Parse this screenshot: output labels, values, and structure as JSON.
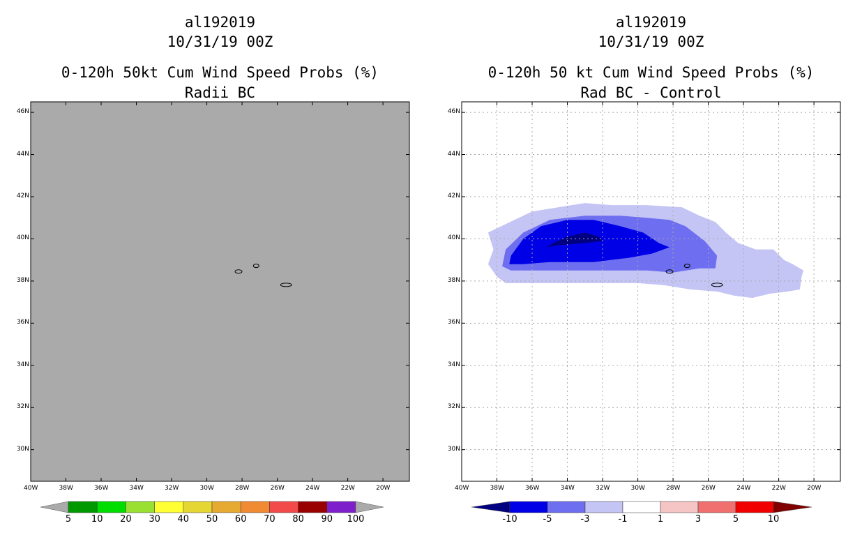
{
  "chart_data": [
    {
      "type": "heatmap",
      "storm_id": "al192019",
      "datetime": "10/31/19 00Z",
      "title": "0-120h 50kt Cum Wind Speed Probs (%)",
      "subtitle": "Radii BC",
      "x_ticks": [
        "40W",
        "38W",
        "36W",
        "34W",
        "32W",
        "30W",
        "28W",
        "26W",
        "24W",
        "22W",
        "20W"
      ],
      "y_ticks": [
        "46N",
        "44N",
        "42N",
        "40N",
        "38N",
        "36N",
        "34N",
        "32N",
        "30N"
      ],
      "xlim": [
        -40,
        -18.5
      ],
      "ylim": [
        28.5,
        46.5
      ],
      "grid": false,
      "background": "#aaaaaa",
      "colorbar": {
        "labels": [
          "5",
          "10",
          "20",
          "30",
          "40",
          "50",
          "60",
          "70",
          "80",
          "90",
          "100"
        ],
        "colors": [
          "#009900",
          "#00dd00",
          "#99e033",
          "#ffff33",
          "#e6d633",
          "#e6aa33",
          "#f08a33",
          "#f24a4a",
          "#990000",
          "#7e1fcc"
        ],
        "end_color": "#aaaaaa"
      }
    },
    {
      "type": "heatmap",
      "storm_id": "al192019",
      "datetime": "10/31/19 00Z",
      "title": "0-120h 50 kt Cum Wind Speed Probs (%)",
      "subtitle": "Rad BC - Control",
      "x_ticks": [
        "40W",
        "38W",
        "36W",
        "34W",
        "32W",
        "30W",
        "28W",
        "26W",
        "24W",
        "22W",
        "20W"
      ],
      "y_ticks": [
        "46N",
        "44N",
        "42N",
        "40N",
        "38N",
        "36N",
        "34N",
        "32N",
        "30N"
      ],
      "xlim": [
        -40,
        -18.5
      ],
      "ylim": [
        28.5,
        46.5
      ],
      "grid": true,
      "colorbar": {
        "labels": [
          "-10",
          "-5",
          "-3",
          "-1",
          "1",
          "3",
          "5",
          "10"
        ],
        "colors": [
          "#0000e6",
          "#6e6ef0",
          "#c4c4f5",
          "#ffffff",
          "#f5c4c4",
          "#f07070",
          "#f00000"
        ],
        "under_color": "#000080",
        "over_color": "#800000"
      },
      "contours": [
        {
          "level": "-1 to -3",
          "color": "#c4c4f5",
          "polygon": [
            [
              -38,
              38.2
            ],
            [
              -37.5,
              37.9
            ],
            [
              -36,
              37.9
            ],
            [
              -34,
              37.9
            ],
            [
              -32,
              37.9
            ],
            [
              -30,
              37.9
            ],
            [
              -28.5,
              37.8
            ],
            [
              -27,
              37.6
            ],
            [
              -25.5,
              37.5
            ],
            [
              -24.5,
              37.3
            ],
            [
              -23.5,
              37.2
            ],
            [
              -22.5,
              37.4
            ],
            [
              -21.5,
              37.5
            ],
            [
              -20.8,
              37.6
            ],
            [
              -20.7,
              38.2
            ],
            [
              -20.6,
              38.5
            ],
            [
              -21.2,
              38.8
            ],
            [
              -21.7,
              39
            ],
            [
              -22.3,
              39.5
            ],
            [
              -23.3,
              39.5
            ],
            [
              -24.3,
              39.8
            ],
            [
              -25,
              40.3
            ],
            [
              -25.6,
              40.8
            ],
            [
              -26.5,
              41.1
            ],
            [
              -27.5,
              41.5
            ],
            [
              -29.5,
              41.6
            ],
            [
              -31.5,
              41.6
            ],
            [
              -33,
              41.7
            ],
            [
              -34.5,
              41.5
            ],
            [
              -36,
              41.3
            ],
            [
              -37.5,
              40.7
            ],
            [
              -38.5,
              40.3
            ],
            [
              -38.2,
              39.5
            ],
            [
              -38.5,
              38.8
            ]
          ]
        },
        {
          "level": "-3 to -5",
          "color": "#6e6ef0",
          "polygon": [
            [
              -37.7,
              38.7
            ],
            [
              -37.2,
              38.5
            ],
            [
              -35.5,
              38.5
            ],
            [
              -33,
              38.5
            ],
            [
              -31,
              38.5
            ],
            [
              -29.5,
              38.5
            ],
            [
              -28,
              38.4
            ],
            [
              -26.5,
              38.6
            ],
            [
              -25.6,
              38.6
            ],
            [
              -25.5,
              39.2
            ],
            [
              -26.2,
              39.9
            ],
            [
              -27.3,
              40.6
            ],
            [
              -28.2,
              40.9
            ],
            [
              -29.5,
              41
            ],
            [
              -31,
              41.1
            ],
            [
              -33,
              41.1
            ],
            [
              -35,
              40.9
            ],
            [
              -36.5,
              40.3
            ],
            [
              -37.5,
              39.5
            ]
          ]
        },
        {
          "level": "-5 to -10",
          "color": "#0000e6",
          "polygon": [
            [
              -37.3,
              38.8
            ],
            [
              -36.5,
              38.8
            ],
            [
              -35,
              38.9
            ],
            [
              -32.5,
              38.9
            ],
            [
              -30.5,
              39.1
            ],
            [
              -29.2,
              39.3
            ],
            [
              -28.2,
              39.6
            ],
            [
              -28.8,
              39.8
            ],
            [
              -29.7,
              40.3
            ],
            [
              -31,
              40.6
            ],
            [
              -32.5,
              40.9
            ],
            [
              -34,
              40.9
            ],
            [
              -35.5,
              40.6
            ],
            [
              -36.5,
              40
            ],
            [
              -37.2,
              39.2
            ]
          ]
        },
        {
          "level": "< -10",
          "color": "#000080",
          "polygon": [
            [
              -35.2,
              39.6
            ],
            [
              -34.5,
              39.7
            ],
            [
              -33,
              39.8
            ],
            [
              -32,
              39.9
            ],
            [
              -32.2,
              40.1
            ],
            [
              -33,
              40.3
            ],
            [
              -34,
              40.1
            ],
            [
              -34.8,
              39.8
            ]
          ]
        }
      ]
    }
  ]
}
